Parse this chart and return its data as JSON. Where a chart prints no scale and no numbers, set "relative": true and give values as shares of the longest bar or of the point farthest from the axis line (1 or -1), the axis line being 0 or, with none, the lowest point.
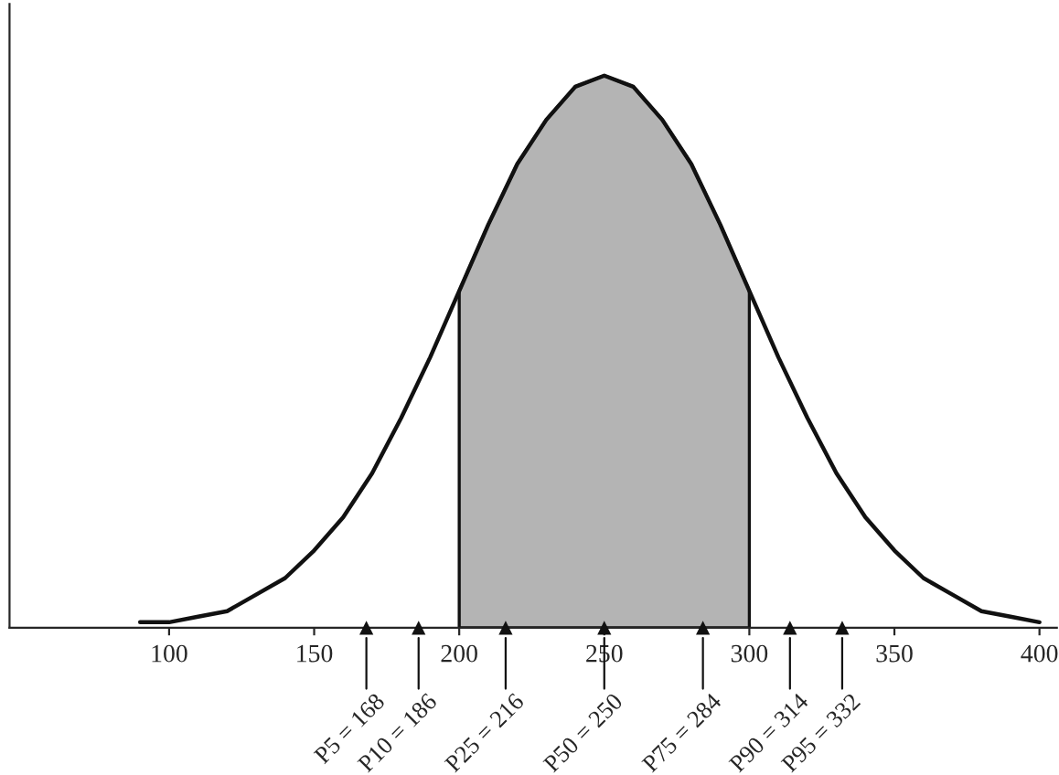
{
  "chart_data": {
    "type": "line",
    "relative": true,
    "x": [
      90,
      100,
      110,
      120,
      130,
      140,
      150,
      160,
      170,
      180,
      190,
      200,
      210,
      220,
      230,
      240,
      250,
      260,
      270,
      280,
      290,
      300,
      310,
      320,
      330,
      340,
      350,
      360,
      370,
      380,
      390,
      400
    ],
    "series": [
      {
        "color": "#111111",
        "values": [
          0.01,
          0.01,
          0.02,
          0.03,
          0.06,
          0.09,
          0.14,
          0.2,
          0.28,
          0.38,
          0.49,
          0.61,
          0.73,
          0.84,
          0.92,
          0.98,
          1,
          0.98,
          0.92,
          0.84,
          0.73,
          0.61,
          0.49,
          0.38,
          0.28,
          0.2,
          0.14,
          0.09,
          0.06,
          0.03,
          0.02,
          0.01
        ]
      },
      {
        "type": "scatter",
        "color": "#111111",
        "marker": "triangle",
        "x": [
          168,
          186,
          216,
          250,
          284,
          314,
          332
        ],
        "values": [
          0,
          0,
          0,
          0,
          0,
          0,
          0
        ]
      },
      {
        "type": "area",
        "color": "#b4b4b4",
        "x": [
          200,
          210,
          220,
          230,
          240,
          250,
          260,
          270,
          280,
          290,
          300
        ],
        "values": [
          0.61,
          0.73,
          0.84,
          0.92,
          0.98,
          1,
          0.98,
          0.92,
          0.84,
          0.73,
          0.61
        ]
      }
    ],
    "xlim": [
      45,
      406
    ],
    "xticks": [
      100,
      150,
      200,
      250,
      300,
      350,
      400
    ],
    "annotations": [
      {
        "text": "P5 = 168",
        "x": 168,
        "y": 0
      },
      {
        "text": "P10 = 186",
        "x": 186,
        "y": 0
      },
      {
        "text": "P25 = 216",
        "x": 216,
        "y": 0
      },
      {
        "text": "P50 = 250",
        "x": 250,
        "y": 0
      },
      {
        "text": "P75 = 284",
        "x": 284,
        "y": 0
      },
      {
        "text": "P90 = 314",
        "x": 314,
        "y": 0
      },
      {
        "text": "P95 = 332",
        "x": 332,
        "y": 0
      }
    ]
  }
}
